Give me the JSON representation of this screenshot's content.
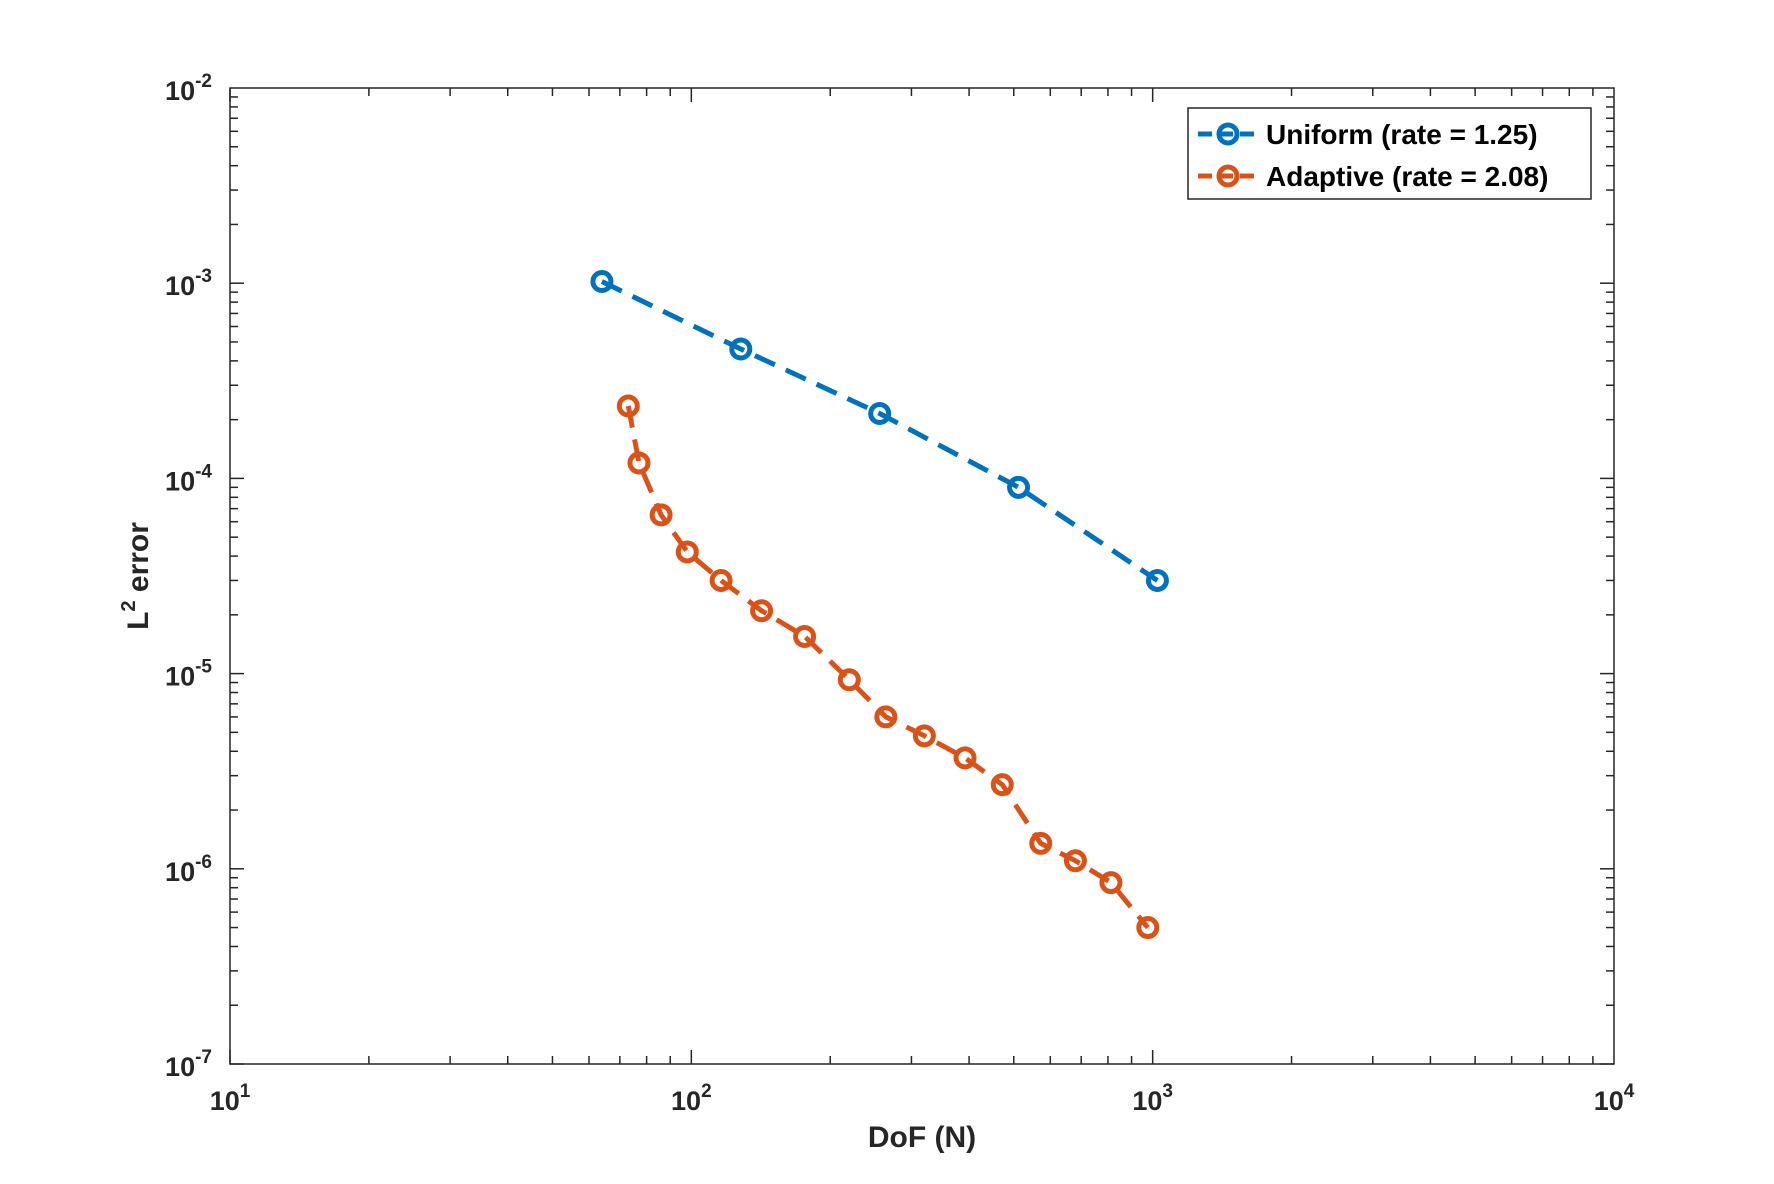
{
  "chart_data": {
    "type": "line",
    "title": "",
    "xlabel": "DoF (N)",
    "ylabel_main": "L",
    "ylabel_sup": "2",
    "ylabel_rest": " error",
    "x_scale": "log",
    "y_scale": "log",
    "xlim": [
      10,
      10000
    ],
    "ylim": [
      1e-07,
      0.01
    ],
    "x_ticks": [
      {
        "base": "10",
        "exp": "1",
        "value": 10
      },
      {
        "base": "10",
        "exp": "2",
        "value": 100
      },
      {
        "base": "10",
        "exp": "3",
        "value": 1000
      },
      {
        "base": "10",
        "exp": "4",
        "value": 10000
      }
    ],
    "y_ticks": [
      {
        "base": "10",
        "exp": "-7",
        "value": 1e-07
      },
      {
        "base": "10",
        "exp": "-6",
        "value": 1e-06
      },
      {
        "base": "10",
        "exp": "-5",
        "value": 1e-05
      },
      {
        "base": "10",
        "exp": "-4",
        "value": 0.0001
      },
      {
        "base": "10",
        "exp": "-3",
        "value": 0.001
      },
      {
        "base": "10",
        "exp": "-2",
        "value": 0.01
      }
    ],
    "grid": false,
    "legend_position": "top-right",
    "series": [
      {
        "name": "Uniform (rate = 1.25)",
        "color": "#0072BD",
        "line_style": "dashed",
        "marker": "circle",
        "x": [
          64,
          128,
          256,
          512,
          1024
        ],
        "y": [
          0.00102,
          0.00046,
          0.000215,
          9e-05,
          3e-05
        ]
      },
      {
        "name": "Adaptive (rate = 2.08)",
        "color": "#D95319",
        "line_style": "dashed",
        "marker": "circle",
        "x": [
          73,
          77,
          86,
          98,
          116,
          142,
          176,
          220,
          264,
          320,
          392,
          472,
          572,
          680,
          812,
          976
        ],
        "y": [
          0.000235,
          0.00012,
          6.5e-05,
          4.2e-05,
          3e-05,
          2.1e-05,
          1.55e-05,
          9.3e-06,
          6e-06,
          4.8e-06,
          3.7e-06,
          2.7e-06,
          1.35e-06,
          1.1e-06,
          8.5e-07,
          5e-07
        ]
      }
    ]
  }
}
